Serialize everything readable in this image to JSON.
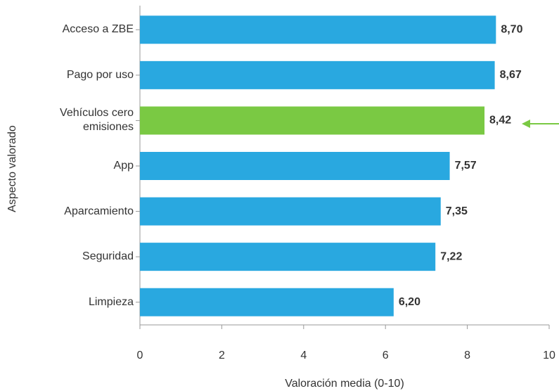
{
  "chart_data": {
    "type": "hbar",
    "categories": [
      "Acceso a ZBE",
      "Pago por uso",
      "Vehículos cero emisiones",
      "App",
      "Aparcamiento",
      "Seguridad",
      "Limpieza"
    ],
    "values": [
      8.7,
      8.67,
      8.42,
      7.57,
      7.35,
      7.22,
      6.2
    ],
    "value_labels": [
      "8,70",
      "8,67",
      "8,42",
      "7,57",
      "7,35",
      "7,22",
      "6,20"
    ],
    "colors": [
      "#29a8e0",
      "#29a8e0",
      "#7ac943",
      "#29a8e0",
      "#29a8e0",
      "#29a8e0",
      "#29a8e0"
    ],
    "xlim": [
      0,
      10
    ],
    "xticks": [
      0,
      2,
      4,
      6,
      8,
      10
    ],
    "xlabel": "Valoración media (0-10)",
    "ylabel": "Aspecto valorado"
  }
}
